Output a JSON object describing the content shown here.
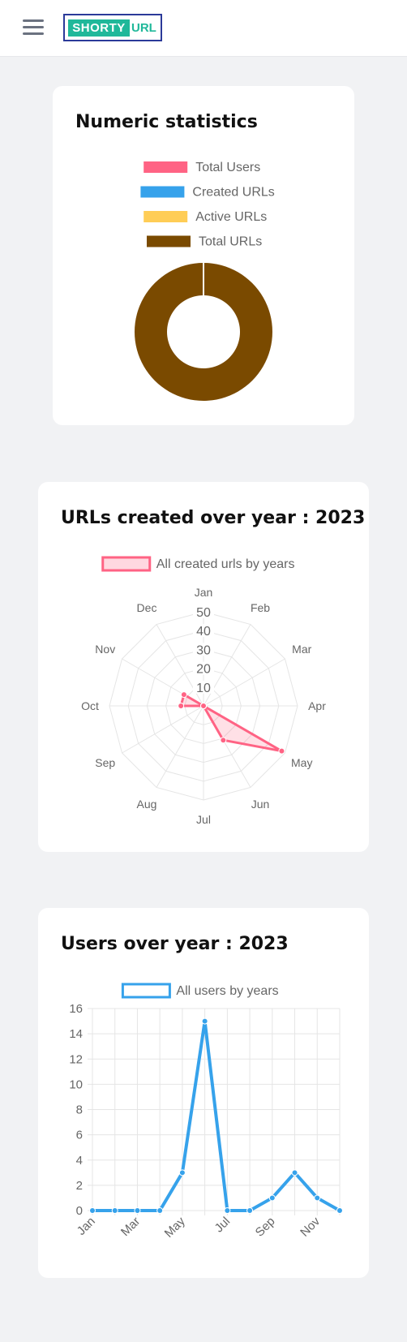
{
  "header": {
    "logo_part1": "SHORTY",
    "logo_part2": "URL",
    "colors": {
      "logo_green": "#20b89a",
      "logo_border": "#2b3a99"
    }
  },
  "cards": {
    "numeric": {
      "title": "Numeric statistics"
    },
    "urls": {
      "title": "URLs created over year : 2023"
    },
    "users": {
      "title": "Users over year : 2023"
    }
  },
  "chart_data": [
    {
      "type": "pie",
      "variant": "doughnut",
      "labels": [
        "Total Users",
        "Created URLs",
        "Active URLs",
        "Total URLs"
      ],
      "values": [
        0,
        0,
        0,
        100
      ],
      "colors": [
        "#ff6384",
        "#36a2eb",
        "#ffcd56",
        "#7a4a00"
      ],
      "legend": "top"
    },
    {
      "type": "radar",
      "categories": [
        "Jan",
        "Feb",
        "Mar",
        "Apr",
        "May",
        "Jun",
        "Jul",
        "Aug",
        "Sep",
        "Oct",
        "Nov",
        "Dec"
      ],
      "series": [
        {
          "name": "All created urls by years",
          "values": [
            0,
            0,
            0,
            0,
            48,
            21,
            0,
            0,
            0,
            12,
            12,
            0
          ]
        }
      ],
      "ticks": [
        10,
        20,
        30,
        40,
        50
      ],
      "range": [
        0,
        50
      ],
      "color": "#ff6384",
      "legend": "top"
    },
    {
      "type": "line",
      "x": [
        "Jan",
        "Feb",
        "Mar",
        "Apr",
        "May",
        "Jun",
        "Jul",
        "Aug",
        "Sep",
        "Oct",
        "Nov",
        "Dec"
      ],
      "xtick_labels": [
        "Jan",
        "Mar",
        "May",
        "Jul",
        "Sep",
        "Nov"
      ],
      "series": [
        {
          "name": "All users by years",
          "values": [
            0,
            0,
            0,
            0,
            3,
            15,
            0,
            0,
            1,
            3,
            1,
            0
          ]
        }
      ],
      "ylim": [
        0,
        16
      ],
      "yticks": [
        0,
        2,
        4,
        6,
        8,
        10,
        12,
        14,
        16
      ],
      "grid": true,
      "color": "#36a2eb",
      "legend": "top"
    }
  ]
}
